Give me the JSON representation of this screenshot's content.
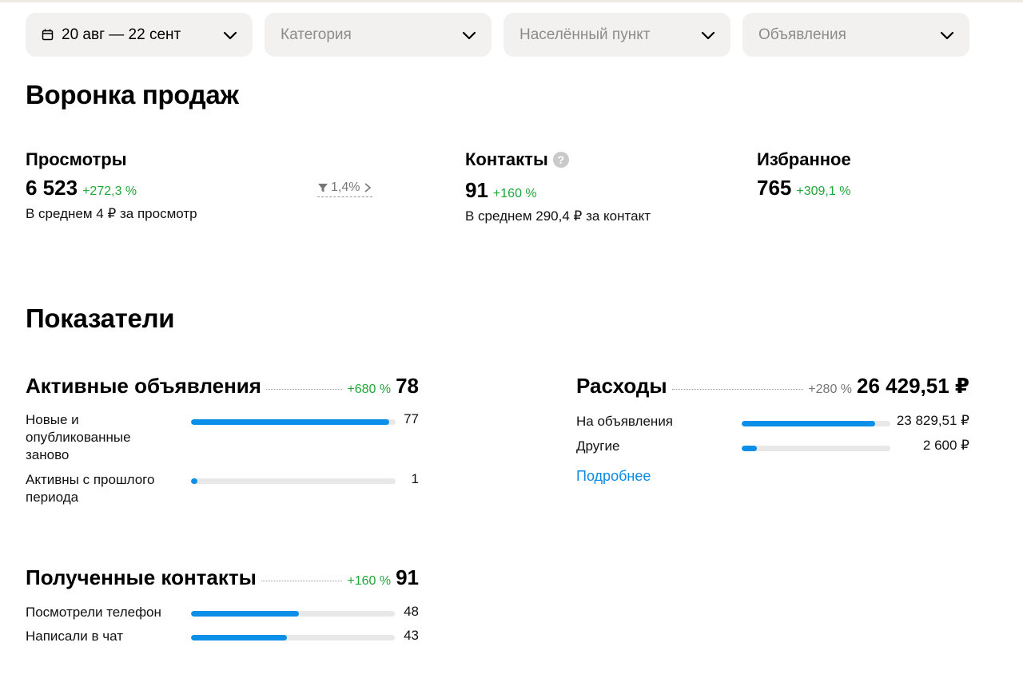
{
  "filters": {
    "date": "20 авг — 22 сент",
    "category": "Категория",
    "locality": "Населённый пункт",
    "listings": "Объявления"
  },
  "funnel": {
    "title": "Воронка продаж",
    "views": {
      "label": "Просмотры",
      "value": "6 523",
      "delta": "+272,3 %",
      "sub": "В среднем 4 ₽ за просмотр"
    },
    "conversion": "1,4%",
    "contacts": {
      "label": "Контакты",
      "help": "?",
      "value": "91",
      "delta": "+160 %",
      "sub": "В среднем 290,4 ₽ за контакт"
    },
    "favorites": {
      "label": "Избранное",
      "value": "765",
      "delta": "+309,1 %"
    }
  },
  "indicators": {
    "title": "Показатели",
    "active_listings": {
      "title": "Активные объявления",
      "delta": "+680 %",
      "value": "78",
      "rows": [
        {
          "label": "Новые и опубликованные заново",
          "value": "77",
          "fill": 0.97
        },
        {
          "label": "Активны с прошлого периода",
          "value": "1",
          "fill": 0.03
        }
      ]
    },
    "expenses": {
      "title": "Расходы",
      "delta": "+280 %",
      "value": "26 429,51 ₽",
      "rows": [
        {
          "label": "На объявления",
          "value": "23 829,51 ₽",
          "fill": 0.9
        },
        {
          "label": "Другие",
          "value": "2 600 ₽",
          "fill": 0.1
        }
      ],
      "more_link": "Подробнее"
    },
    "received_contacts": {
      "title": "Полученные контакты",
      "delta": "+160 %",
      "value": "91",
      "rows": [
        {
          "label": "Посмотрели телефон",
          "value": "48",
          "fill": 0.53
        },
        {
          "label": "Написали в чат",
          "value": "43",
          "fill": 0.47
        }
      ]
    }
  },
  "colors": {
    "accent": "#0c8fe8",
    "positive": "#1ea83a",
    "filter_bg": "#f2f1f0"
  },
  "icons": {
    "date": "calendar-icon",
    "dropdown": "chevron-down-icon",
    "funnel": "funnel-icon",
    "help": "question-icon"
  }
}
